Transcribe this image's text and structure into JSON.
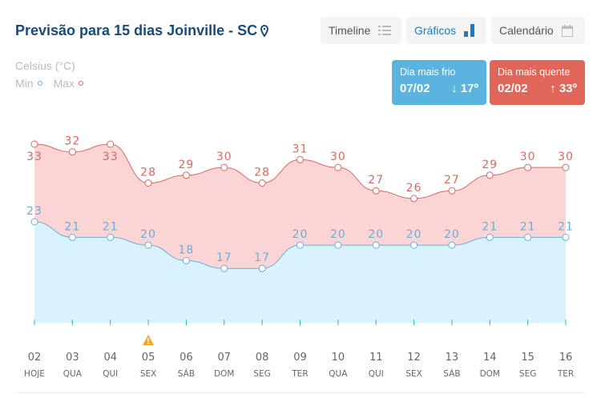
{
  "header": {
    "title": "Previsão para 15 dias Joinville - SC",
    "location_icon": "map-pin-icon"
  },
  "views": [
    {
      "label": "Timeline",
      "icon": "list-icon",
      "active": false
    },
    {
      "label": "Gráficos",
      "icon": "bar-chart-icon",
      "active": true
    },
    {
      "label": "Calendário",
      "icon": "calendar-icon",
      "active": false
    }
  ],
  "unit": "Celsius (°C)",
  "legend": {
    "min": "Min",
    "max": "Max"
  },
  "cold": {
    "label": "Dia mais frio",
    "date": "07/02",
    "temp": "↓ 17º",
    "color": "#5bb3e0"
  },
  "hot": {
    "label": "Dia mais quente",
    "date": "02/02",
    "temp": "↑ 33º",
    "color": "#e0665a"
  },
  "chart_data": {
    "type": "area",
    "days": [
      "02",
      "03",
      "04",
      "05",
      "06",
      "07",
      "08",
      "09",
      "10",
      "11",
      "12",
      "13",
      "14",
      "15",
      "16"
    ],
    "weekdays": [
      "HOJE",
      "QUA",
      "QUI",
      "SEX",
      "SÁB",
      "DOM",
      "SEG",
      "TER",
      "QUA",
      "QUI",
      "SEX",
      "SÁB",
      "DOM",
      "SEG",
      "TER"
    ],
    "series": [
      {
        "name": "Max",
        "color": "#d9695f",
        "fill": "#fbd5d6",
        "values": [
          33,
          32,
          33,
          28,
          29,
          30,
          28,
          31,
          30,
          27,
          26,
          27,
          29,
          30,
          30
        ]
      },
      {
        "name": "Min",
        "color": "#6aaed6",
        "fill": "#d9f2fd",
        "values": [
          23,
          21,
          21,
          20,
          18,
          17,
          17,
          20,
          20,
          20,
          20,
          20,
          21,
          21,
          21
        ]
      }
    ],
    "alerts": [
      "05"
    ],
    "ylim": [
      10,
      33
    ]
  }
}
